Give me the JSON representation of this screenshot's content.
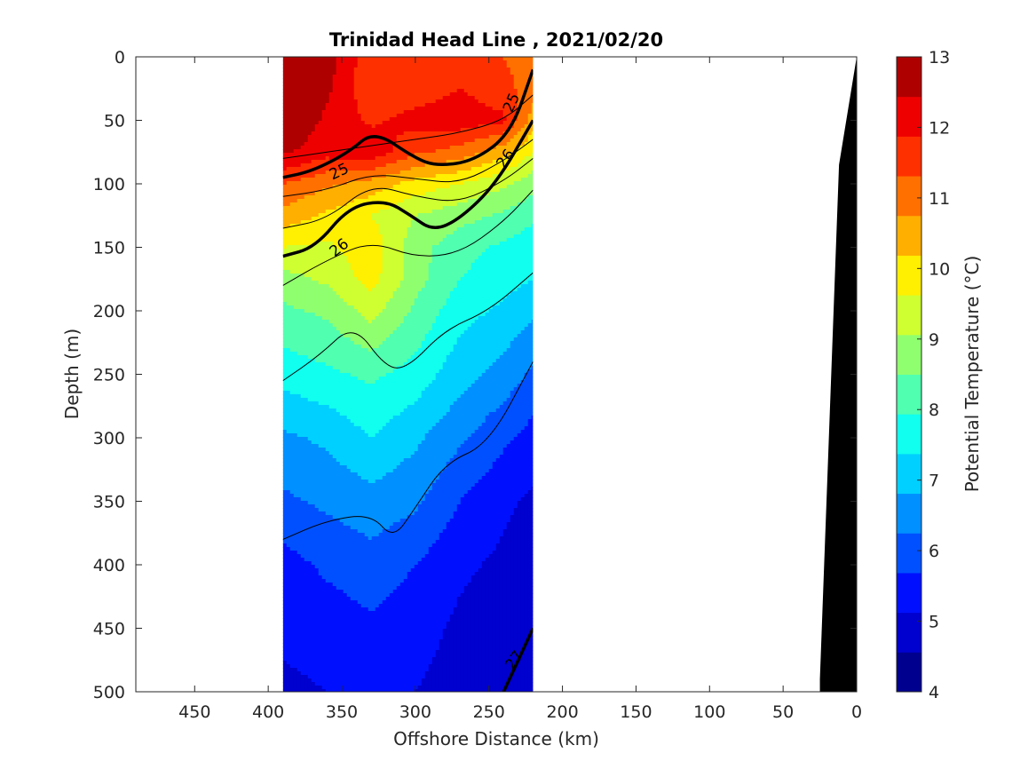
{
  "chart_data": {
    "type": "heatmap",
    "title": "Trinidad Head Line , 2021/02/20",
    "xlabel": "Offshore Distance (km)",
    "ylabel": "Depth (m)",
    "xlim": [
      490,
      0
    ],
    "ylim": [
      0,
      500
    ],
    "x_reversed": true,
    "y_reversed": true,
    "x_ticks": [
      "450",
      "400",
      "350",
      "300",
      "250",
      "200",
      "150",
      "100",
      "50",
      "0"
    ],
    "y_ticks": [
      "0",
      "50",
      "100",
      "150",
      "200",
      "250",
      "300",
      "350",
      "400",
      "450",
      "500"
    ],
    "colorbar": {
      "label": "Potential Temperature (°C)",
      "ticks": [
        "4",
        "5",
        "6",
        "7",
        "8",
        "9",
        "10",
        "11",
        "12",
        "13"
      ],
      "range": [
        4,
        13
      ],
      "step": 0.5,
      "colors": [
        "#00008f",
        "#0000cf",
        "#0010ff",
        "#0050ff",
        "#0090ff",
        "#00d0ff",
        "#10ffef",
        "#50ffaf",
        "#90ff6f",
        "#cfff30",
        "#ffef00",
        "#ffaf00",
        "#ff7000",
        "#ff3000",
        "#ef0000",
        "#af0000"
      ]
    },
    "data_extent_x": [
      390,
      220
    ],
    "contour_labels": [
      "25",
      "25",
      "26",
      "26",
      "27"
    ],
    "bathymetry_color": "#000000",
    "bathymetry": {
      "x": [
        0,
        12,
        25,
        25,
        0
      ],
      "depth": [
        0,
        85,
        490,
        500,
        500
      ]
    },
    "temperature_field": {
      "x": [
        390,
        360,
        330,
        300,
        270,
        240,
        220
      ],
      "depth": [
        0,
        25,
        50,
        75,
        100,
        125,
        150,
        175,
        200,
        250,
        300,
        350,
        400,
        450,
        500
      ],
      "values": [
        [
          12.3,
          11.8,
          10.6,
          10.6,
          10.9,
          10.5,
          10.2
        ],
        [
          12.2,
          11.6,
          10.6,
          10.7,
          11.0,
          10.7,
          10.2
        ],
        [
          12.0,
          11.4,
          10.9,
          11.2,
          11.3,
          11.1,
          9.8
        ],
        [
          11.6,
          11.2,
          11.4,
          10.6,
          10.3,
          9.7,
          9.0
        ],
        [
          10.5,
          10.1,
          9.8,
          9.3,
          9.0,
          8.6,
          8.2
        ],
        [
          9.8,
          9.4,
          9.0,
          8.5,
          8.2,
          7.9,
          7.6
        ],
        [
          9.0,
          8.9,
          9.3,
          8.2,
          7.7,
          7.4,
          7.2
        ],
        [
          8.3,
          8.6,
          9.2,
          8.2,
          7.5,
          7.2,
          7.0
        ],
        [
          7.9,
          8.1,
          8.7,
          7.9,
          7.2,
          6.9,
          6.6
        ],
        [
          7.2,
          7.4,
          7.6,
          7.3,
          6.7,
          6.3,
          5.9
        ],
        [
          6.4,
          6.6,
          7.0,
          6.6,
          6.1,
          5.6,
          5.3
        ],
        [
          5.9,
          6.1,
          6.3,
          6.1,
          5.5,
          5.1,
          4.9
        ],
        [
          5.3,
          5.6,
          5.8,
          5.5,
          5.1,
          4.9,
          4.7
        ],
        [
          5.1,
          5.2,
          5.4,
          5.2,
          4.9,
          4.7,
          4.6
        ],
        [
          4.9,
          5.0,
          5.1,
          5.0,
          4.8,
          4.6,
          4.5
        ]
      ]
    },
    "isopycnals": [
      {
        "sigma": 25,
        "x": [
          390,
          370,
          345,
          328,
          300,
          285,
          260,
          235,
          220
        ],
        "depth": [
          95,
          90,
          75,
          58,
          80,
          86,
          82,
          60,
          10
        ]
      },
      {
        "sigma": 26,
        "x": [
          390,
          368,
          345,
          320,
          303,
          288,
          270,
          245,
          220
        ],
        "depth": [
          157,
          150,
          118,
          113,
          125,
          137,
          128,
          100,
          50
        ]
      },
      {
        "sigma": 27,
        "x": [
          240,
          230,
          220
        ],
        "depth": [
          500,
          475,
          450
        ]
      }
    ],
    "thin_contours": [
      {
        "x": [
          390,
          360,
          330,
          300,
          270,
          240,
          220
        ],
        "depth": [
          80,
          75,
          70,
          65,
          60,
          50,
          30
        ]
      },
      {
        "x": [
          390,
          360,
          330,
          300,
          270,
          240,
          220
        ],
        "depth": [
          110,
          105,
          92,
          96,
          100,
          82,
          65
        ]
      },
      {
        "x": [
          390,
          360,
          330,
          300,
          270,
          240,
          220
        ],
        "depth": [
          135,
          128,
          100,
          110,
          115,
          98,
          80
        ]
      },
      {
        "x": [
          390,
          360,
          330,
          300,
          270,
          240,
          220
        ],
        "depth": [
          180,
          160,
          145,
          158,
          155,
          130,
          105
        ]
      },
      {
        "x": [
          390,
          365,
          342,
          320,
          305,
          280,
          250,
          220
        ],
        "depth": [
          255,
          235,
          210,
          245,
          245,
          215,
          200,
          170
        ]
      },
      {
        "x": [
          390,
          360,
          330,
          315,
          300,
          280,
          250,
          220
        ],
        "depth": [
          380,
          365,
          360,
          380,
          355,
          320,
          305,
          240
        ]
      }
    ]
  }
}
